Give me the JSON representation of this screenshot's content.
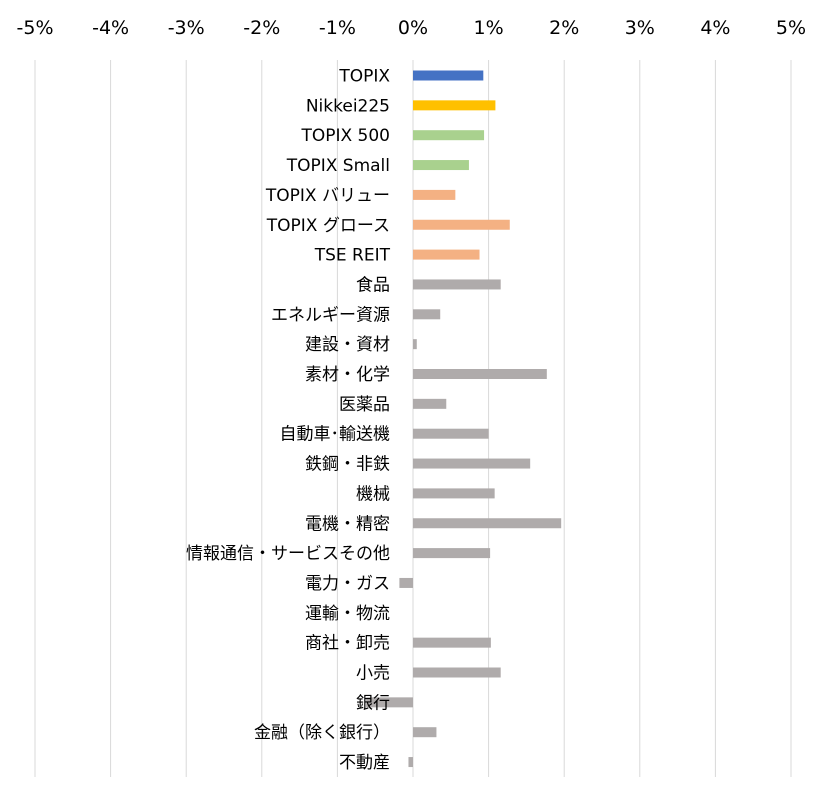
{
  "chart_data": {
    "type": "bar",
    "orientation": "horizontal",
    "title": "",
    "xlabel": "",
    "ylabel": "",
    "xlim": [
      -5,
      5
    ],
    "x_ticks": [
      -5,
      -4,
      -3,
      -2,
      -1,
      0,
      1,
      2,
      3,
      4,
      5
    ],
    "x_tick_labels": [
      "-5%",
      "-4%",
      "-3%",
      "-2%",
      "-1%",
      "0%",
      "1%",
      "2%",
      "3%",
      "4%",
      "5%"
    ],
    "x_axis_position": "top",
    "grid": "vertical",
    "legend": "none",
    "unit": "%",
    "categories": [
      "TOPIX",
      "Nikkei225",
      "TOPIX 500",
      "TOPIX Small",
      "TOPIX バリュー",
      "TOPIX グロース",
      "TSE REIT",
      "食品",
      "エネルギー資源",
      "建設・資材",
      "素材・化学",
      "医薬品",
      "自動車･輸送機",
      "鉄鋼・非鉄",
      "機械",
      "電機・精密",
      "情報通信・サービスその他",
      "電力・ガス",
      "運輸・物流",
      "商社・卸売",
      "小売",
      "銀行",
      "金融（除く銀行）",
      "不動産"
    ],
    "values": [
      0.93,
      1.09,
      0.94,
      0.74,
      0.56,
      1.28,
      0.88,
      1.16,
      0.36,
      0.05,
      1.77,
      0.44,
      1.0,
      1.55,
      1.08,
      1.96,
      1.02,
      -0.18,
      0.0,
      1.03,
      1.16,
      -0.62,
      0.31,
      -0.06
    ],
    "colors": [
      "#4472C4",
      "#FFC000",
      "#A9D18E",
      "#A9D18E",
      "#F4B183",
      "#F4B183",
      "#F4B183",
      "#AFABAB",
      "#AFABAB",
      "#AFABAB",
      "#AFABAB",
      "#AFABAB",
      "#AFABAB",
      "#AFABAB",
      "#AFABAB",
      "#AFABAB",
      "#AFABAB",
      "#AFABAB",
      "#AFABAB",
      "#AFABAB",
      "#AFABAB",
      "#AFABAB",
      "#AFABAB",
      "#AFABAB"
    ],
    "gridline_color": "#D9D9D9"
  }
}
